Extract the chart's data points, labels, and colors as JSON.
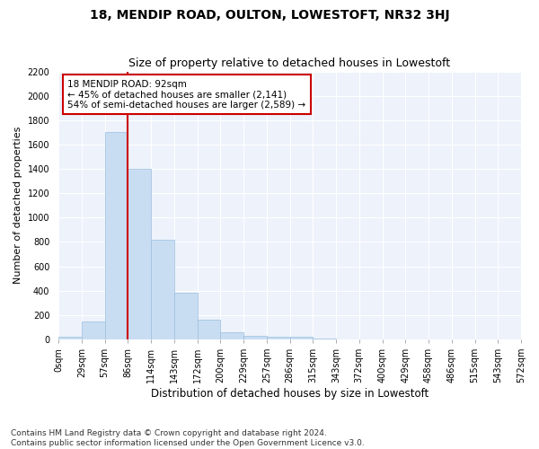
{
  "title": "18, MENDIP ROAD, OULTON, LOWESTOFT, NR32 3HJ",
  "subtitle": "Size of property relative to detached houses in Lowestoft",
  "xlabel": "Distribution of detached houses by size in Lowestoft",
  "ylabel": "Number of detached properties",
  "bar_color": "#c9ddf2",
  "bar_edge_color": "#9abfde",
  "background_color": "#edf2fb",
  "grid_color": "#ffffff",
  "annotation_text": "18 MENDIP ROAD: 92sqm\n← 45% of detached houses are smaller (2,141)\n54% of semi-detached houses are larger (2,589) →",
  "vline_bin_index": 3,
  "bar_heights": [
    20,
    150,
    1700,
    1400,
    820,
    380,
    160,
    60,
    30,
    25,
    25,
    5,
    0,
    0,
    0,
    0,
    0,
    0,
    0,
    0
  ],
  "tick_labels": [
    "0sqm",
    "29sqm",
    "57sqm",
    "86sqm",
    "114sqm",
    "143sqm",
    "172sqm",
    "200sqm",
    "229sqm",
    "257sqm",
    "286sqm",
    "315sqm",
    "343sqm",
    "372sqm",
    "400sqm",
    "429sqm",
    "458sqm",
    "486sqm",
    "515sqm",
    "543sqm",
    "572sqm"
  ],
  "ylim": [
    0,
    2200
  ],
  "yticks": [
    0,
    200,
    400,
    600,
    800,
    1000,
    1200,
    1400,
    1600,
    1800,
    2000,
    2200
  ],
  "footnote": "Contains HM Land Registry data © Crown copyright and database right 2024.\nContains public sector information licensed under the Open Government Licence v3.0.",
  "annotation_box_color": "#ffffff",
  "annotation_box_edge_color": "#cc0000",
  "vline_color": "#cc0000",
  "title_fontsize": 10,
  "subtitle_fontsize": 9,
  "tick_fontsize": 7,
  "ylabel_fontsize": 8,
  "xlabel_fontsize": 8.5,
  "footnote_fontsize": 6.5,
  "annotation_fontsize": 7.5
}
